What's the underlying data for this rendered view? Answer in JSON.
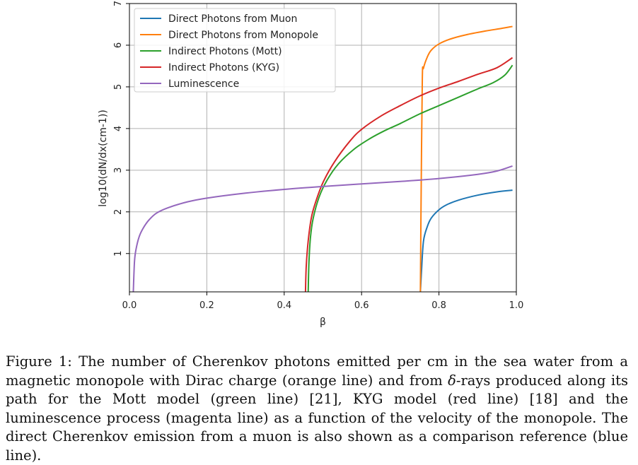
{
  "chart_data": {
    "type": "line",
    "xlabel": "β",
    "ylabel": "log10(dN/dx(cm-1))",
    "xlim": [
      0.0,
      1.0
    ],
    "ylim": [
      0.08,
      7.0
    ],
    "x_ticks": [
      0.0,
      0.2,
      0.4,
      0.6,
      0.8,
      1.0
    ],
    "x_tick_labels": [
      "0.0",
      "0.2",
      "0.4",
      "0.6",
      "0.8",
      "1.0"
    ],
    "y_ticks": [
      1,
      2,
      3,
      4,
      5,
      6,
      7
    ],
    "y_tick_labels": [
      "1",
      "2",
      "3",
      "4",
      "5",
      "6",
      "7"
    ],
    "grid": true,
    "legend_position": "top-left",
    "series": [
      {
        "name": "Direct Photons from Muon",
        "color": "#1f77b4",
        "x": [
          0.752,
          0.755,
          0.76,
          0.77,
          0.78,
          0.8,
          0.82,
          0.85,
          0.9,
          0.95,
          0.99
        ],
        "y": [
          0.08,
          0.6,
          1.3,
          1.65,
          1.85,
          2.05,
          2.17,
          2.28,
          2.4,
          2.48,
          2.52
        ]
      },
      {
        "name": "Direct Photons from Monopole",
        "color": "#ff7f0e",
        "x": [
          0.752,
          0.754,
          0.757,
          0.76,
          0.77,
          0.78,
          0.8,
          0.83,
          0.87,
          0.92,
          0.96,
          0.99
        ],
        "y": [
          0.08,
          2.5,
          5.2,
          5.45,
          5.72,
          5.88,
          6.03,
          6.15,
          6.25,
          6.34,
          6.4,
          6.45
        ]
      },
      {
        "name": "Indirect Photons (Mott)",
        "color": "#2ca02c",
        "x": [
          0.462,
          0.464,
          0.468,
          0.475,
          0.49,
          0.51,
          0.54,
          0.58,
          0.62,
          0.66,
          0.7,
          0.75,
          0.8,
          0.85,
          0.9,
          0.94,
          0.97,
          0.99
        ],
        "y": [
          0.08,
          0.8,
          1.4,
          1.85,
          2.35,
          2.75,
          3.15,
          3.5,
          3.75,
          3.95,
          4.12,
          4.35,
          4.55,
          4.75,
          4.95,
          5.1,
          5.28,
          5.52
        ]
      },
      {
        "name": "Indirect Photons (KYG)",
        "color": "#d62728",
        "x": [
          0.455,
          0.457,
          0.462,
          0.47,
          0.48,
          0.5,
          0.53,
          0.57,
          0.6,
          0.65,
          0.7,
          0.75,
          0.8,
          0.85,
          0.9,
          0.95,
          0.99
        ],
        "y": [
          0.08,
          0.7,
          1.3,
          1.85,
          2.2,
          2.7,
          3.2,
          3.7,
          3.98,
          4.3,
          4.55,
          4.78,
          4.97,
          5.13,
          5.3,
          5.46,
          5.7
        ]
      },
      {
        "name": "Luminescence",
        "color": "#9467bd",
        "x": [
          0.01,
          0.013,
          0.017,
          0.025,
          0.035,
          0.05,
          0.07,
          0.1,
          0.15,
          0.2,
          0.3,
          0.4,
          0.5,
          0.6,
          0.7,
          0.8,
          0.9,
          0.95,
          0.99
        ],
        "y": [
          0.08,
          0.8,
          1.1,
          1.4,
          1.6,
          1.8,
          1.97,
          2.1,
          2.24,
          2.33,
          2.45,
          2.54,
          2.61,
          2.67,
          2.73,
          2.8,
          2.9,
          2.98,
          3.1
        ]
      }
    ]
  },
  "caption": {
    "prefix": "Figure 1:  The number of Cherenkov photons emitted per cm in the sea water from a magnetic monopole with Dirac charge (orange line) and from ",
    "delta_symbol": "δ",
    "suffix": "-rays produced along its path for the Mott model (green line) [21], KYG model (red line) [18] and the luminescence process (magenta line) as a function of the velocity of the monopole.  The direct Cherenkov emission from a muon is also shown as a comparison reference (blue line)."
  }
}
